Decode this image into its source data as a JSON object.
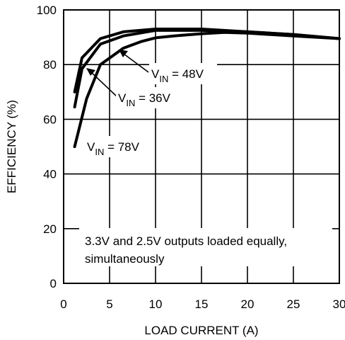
{
  "chart_data": {
    "type": "line",
    "title": "",
    "xlabel": "LOAD CURRENT (A)",
    "ylabel": "EFFICIENCY (%)",
    "xlim": [
      0,
      30
    ],
    "ylim": [
      0,
      100
    ],
    "xticks": [
      0,
      5,
      10,
      15,
      20,
      25,
      30
    ],
    "yticks": [
      0,
      20,
      40,
      60,
      80,
      100
    ],
    "grid": true,
    "series": [
      {
        "name_parts": {
          "v": "V",
          "sub": "IN",
          "value": " = 36V"
        },
        "x": [
          1.2,
          2.0,
          4.0,
          6.5,
          10,
          15,
          20,
          25,
          30
        ],
        "y": [
          70,
          82.5,
          89.5,
          92,
          93,
          93,
          92,
          91,
          89.5
        ]
      },
      {
        "name_parts": {
          "v": "V",
          "sub": "IN",
          "value": " = 48V"
        },
        "x": [
          1.2,
          2.0,
          4.0,
          6.5,
          10,
          15,
          20,
          25,
          30
        ],
        "y": [
          64.5,
          78.5,
          87.5,
          90.5,
          92.5,
          92.5,
          92,
          91,
          89.5
        ]
      },
      {
        "name_parts": {
          "v": "V",
          "sub": "IN",
          "value": " = 78V"
        },
        "x": [
          1.2,
          2.5,
          4.0,
          6.5,
          8.5,
          10,
          12,
          15,
          17.5,
          20,
          25,
          30
        ],
        "y": [
          50,
          67.5,
          80,
          86,
          88.5,
          89.8,
          90.5,
          91.3,
          91.8,
          91.5,
          90.5,
          89.5
        ]
      }
    ],
    "annotation": {
      "lines": [
        "3.3V and 2.5V outputs loaded equally,",
        "simultaneously"
      ]
    }
  }
}
